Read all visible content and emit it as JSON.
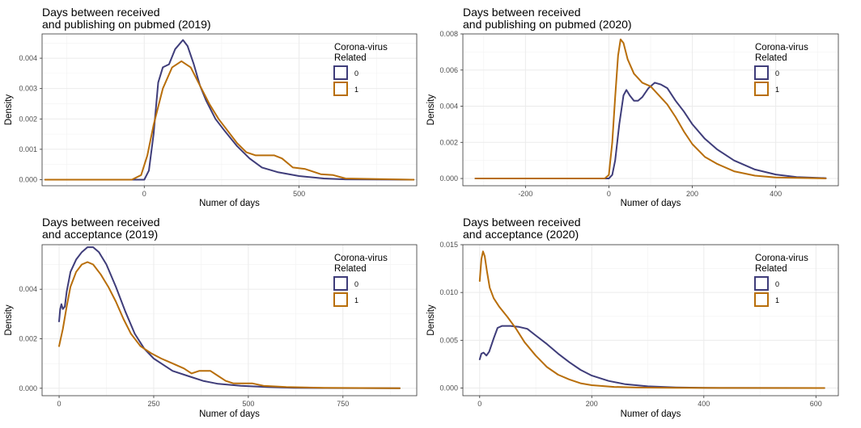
{
  "chart_data": [
    {
      "type": "line",
      "title": "Days between received\nand publishing on pubmed (2019)",
      "xlabel": "Numer of days",
      "ylabel": "Density",
      "xlim": [
        -330,
        880
      ],
      "ylim": [
        -0.0002,
        0.0048
      ],
      "xticks": [
        {
          "value": 0,
          "label": "0"
        },
        {
          "value": 500,
          "label": "500"
        }
      ],
      "yticks": [
        {
          "value": 0,
          "label": "0.000"
        },
        {
          "value": 0.001,
          "label": "0.001"
        },
        {
          "value": 0.002,
          "label": "0.002"
        },
        {
          "value": 0.003,
          "label": "0.003"
        },
        {
          "value": 0.004,
          "label": "0.004"
        }
      ],
      "grid": true,
      "legend": {
        "title": "Corona-virus\nRelated",
        "position": "top-right"
      },
      "series": [
        {
          "name": "0",
          "color": "#3f3d7a",
          "points": [
            [
              -320,
              0
            ],
            [
              0,
              0
            ],
            [
              15,
              0.0003
            ],
            [
              30,
              0.0015
            ],
            [
              45,
              0.0032
            ],
            [
              60,
              0.0037
            ],
            [
              80,
              0.0038
            ],
            [
              100,
              0.0043
            ],
            [
              125,
              0.0046
            ],
            [
              140,
              0.0044
            ],
            [
              160,
              0.0038
            ],
            [
              180,
              0.0031
            ],
            [
              200,
              0.0026
            ],
            [
              230,
              0.002
            ],
            [
              260,
              0.0016
            ],
            [
              300,
              0.0011
            ],
            [
              340,
              0.0007
            ],
            [
              380,
              0.0004
            ],
            [
              430,
              0.00025
            ],
            [
              500,
              0.00012
            ],
            [
              580,
              4e-05
            ],
            [
              650,
              1e-05
            ],
            [
              870,
              0
            ]
          ]
        },
        {
          "name": "1",
          "color": "#b86e0a",
          "points": [
            [
              -320,
              0
            ],
            [
              -40,
              0
            ],
            [
              -10,
              0.00015
            ],
            [
              10,
              0.0008
            ],
            [
              30,
              0.0018
            ],
            [
              60,
              0.003
            ],
            [
              90,
              0.0037
            ],
            [
              120,
              0.0039
            ],
            [
              150,
              0.0037
            ],
            [
              180,
              0.0031
            ],
            [
              210,
              0.0025
            ],
            [
              240,
              0.002
            ],
            [
              270,
              0.0016
            ],
            [
              300,
              0.0012
            ],
            [
              330,
              0.0009
            ],
            [
              360,
              0.0008
            ],
            [
              390,
              0.0008
            ],
            [
              420,
              0.0008
            ],
            [
              445,
              0.0007
            ],
            [
              480,
              0.0004
            ],
            [
              520,
              0.00035
            ],
            [
              570,
              0.00018
            ],
            [
              610,
              0.00015
            ],
            [
              650,
              4e-05
            ],
            [
              870,
              0
            ]
          ]
        }
      ]
    },
    {
      "type": "line",
      "title": "Days between received\nand publishing on pubmed (2020)",
      "xlabel": "Numer of days",
      "ylabel": "Density",
      "xlim": [
        -350,
        550
      ],
      "ylim": [
        -0.0004,
        0.008
      ],
      "xticks": [
        {
          "value": -200,
          "label": "-200"
        },
        {
          "value": 0,
          "label": "0"
        },
        {
          "value": 200,
          "label": "200"
        },
        {
          "value": 400,
          "label": "400"
        }
      ],
      "yticks": [
        {
          "value": 0,
          "label": "0.000"
        },
        {
          "value": 0.002,
          "label": "0.002"
        },
        {
          "value": 0.004,
          "label": "0.004"
        },
        {
          "value": 0.006,
          "label": "0.006"
        },
        {
          "value": 0.008,
          "label": "0.008"
        }
      ],
      "grid": true,
      "legend": {
        "title": "Corona-virus\nRelated",
        "position": "top-right"
      },
      "series": [
        {
          "name": "0",
          "color": "#3f3d7a",
          "points": [
            [
              -320,
              0
            ],
            [
              0,
              0
            ],
            [
              8,
              0.0002
            ],
            [
              15,
              0.001
            ],
            [
              25,
              0.003
            ],
            [
              35,
              0.0046
            ],
            [
              42,
              0.0049
            ],
            [
              50,
              0.0046
            ],
            [
              60,
              0.0043
            ],
            [
              70,
              0.0043
            ],
            [
              80,
              0.0045
            ],
            [
              95,
              0.005
            ],
            [
              110,
              0.0053
            ],
            [
              125,
              0.0052
            ],
            [
              140,
              0.005
            ],
            [
              160,
              0.0043
            ],
            [
              180,
              0.0037
            ],
            [
              200,
              0.003
            ],
            [
              230,
              0.0022
            ],
            [
              260,
              0.0016
            ],
            [
              300,
              0.001
            ],
            [
              350,
              0.0005
            ],
            [
              400,
              0.00022
            ],
            [
              450,
              8e-05
            ],
            [
              520,
              2e-05
            ]
          ]
        },
        {
          "name": "1",
          "color": "#b86e0a",
          "points": [
            [
              -320,
              0
            ],
            [
              -10,
              0
            ],
            [
              0,
              0.0002
            ],
            [
              8,
              0.002
            ],
            [
              15,
              0.0045
            ],
            [
              22,
              0.0068
            ],
            [
              28,
              0.0077
            ],
            [
              35,
              0.0075
            ],
            [
              45,
              0.0066
            ],
            [
              60,
              0.0058
            ],
            [
              80,
              0.0053
            ],
            [
              100,
              0.0051
            ],
            [
              120,
              0.0046
            ],
            [
              140,
              0.0041
            ],
            [
              160,
              0.0034
            ],
            [
              180,
              0.0026
            ],
            [
              200,
              0.0019
            ],
            [
              230,
              0.0012
            ],
            [
              260,
              0.0008
            ],
            [
              300,
              0.0004
            ],
            [
              350,
              0.00016
            ],
            [
              400,
              6e-05
            ],
            [
              520,
              0
            ]
          ]
        }
      ]
    },
    {
      "type": "line",
      "title": "Days between received\nand acceptance (2019)",
      "xlabel": "Numer of days",
      "ylabel": "Density",
      "xlim": [
        -45,
        945
      ],
      "ylim": [
        -0.0003,
        0.0058
      ],
      "xticks": [
        {
          "value": 0,
          "label": "0"
        },
        {
          "value": 250,
          "label": "250"
        },
        {
          "value": 500,
          "label": "500"
        },
        {
          "value": 750,
          "label": "750"
        }
      ],
      "yticks": [
        {
          "value": 0,
          "label": "0.000"
        },
        {
          "value": 0.002,
          "label": "0.002"
        },
        {
          "value": 0.004,
          "label": "0.004"
        }
      ],
      "grid": true,
      "legend": {
        "title": "Corona-virus\nRelated",
        "position": "top-right"
      },
      "series": [
        {
          "name": "0",
          "color": "#3f3d7a",
          "points": [
            [
              0,
              0.0027
            ],
            [
              3,
              0.0032
            ],
            [
              6,
              0.0034
            ],
            [
              10,
              0.0032
            ],
            [
              15,
              0.0033
            ],
            [
              20,
              0.0039
            ],
            [
              30,
              0.0047
            ],
            [
              45,
              0.0052
            ],
            [
              60,
              0.0055
            ],
            [
              75,
              0.0057
            ],
            [
              90,
              0.0057
            ],
            [
              105,
              0.0055
            ],
            [
              125,
              0.005
            ],
            [
              150,
              0.0041
            ],
            [
              175,
              0.0031
            ],
            [
              200,
              0.0022
            ],
            [
              225,
              0.0016
            ],
            [
              250,
              0.0012
            ],
            [
              280,
              0.0009
            ],
            [
              300,
              0.0007
            ],
            [
              340,
              0.0005
            ],
            [
              380,
              0.0003
            ],
            [
              420,
              0.00018
            ],
            [
              480,
              0.0001
            ],
            [
              550,
              5e-05
            ],
            [
              620,
              2e-05
            ],
            [
              700,
              1e-05
            ],
            [
              900,
              0
            ]
          ]
        },
        {
          "name": "1",
          "color": "#b86e0a",
          "points": [
            [
              0,
              0.0017
            ],
            [
              10,
              0.0024
            ],
            [
              20,
              0.0033
            ],
            [
              30,
              0.0041
            ],
            [
              45,
              0.0047
            ],
            [
              60,
              0.005
            ],
            [
              75,
              0.0051
            ],
            [
              90,
              0.005
            ],
            [
              110,
              0.0046
            ],
            [
              130,
              0.0041
            ],
            [
              150,
              0.0035
            ],
            [
              170,
              0.0028
            ],
            [
              190,
              0.0022
            ],
            [
              215,
              0.0017
            ],
            [
              245,
              0.0014
            ],
            [
              270,
              0.0012
            ],
            [
              300,
              0.001
            ],
            [
              330,
              0.0008
            ],
            [
              350,
              0.0006
            ],
            [
              370,
              0.0007
            ],
            [
              385,
              0.0007
            ],
            [
              400,
              0.0007
            ],
            [
              420,
              0.0005
            ],
            [
              440,
              0.0003
            ],
            [
              460,
              0.0002
            ],
            [
              490,
              0.0002
            ],
            [
              510,
              0.0002
            ],
            [
              540,
              0.0001
            ],
            [
              600,
              5e-05
            ],
            [
              700,
              2e-05
            ],
            [
              900,
              0
            ]
          ]
        }
      ]
    },
    {
      "type": "line",
      "title": "Days between received\nand acceptance (2020)",
      "xlabel": "Numer of days",
      "ylabel": "Density",
      "xlim": [
        -30,
        640
      ],
      "ylim": [
        -0.0008,
        0.015
      ],
      "xticks": [
        {
          "value": 0,
          "label": "0"
        },
        {
          "value": 200,
          "label": "200"
        },
        {
          "value": 400,
          "label": "400"
        },
        {
          "value": 600,
          "label": "600"
        }
      ],
      "yticks": [
        {
          "value": 0,
          "label": "0.000"
        },
        {
          "value": 0.005,
          "label": "0.005"
        },
        {
          "value": 0.01,
          "label": "0.010"
        },
        {
          "value": 0.015,
          "label": "0.015"
        }
      ],
      "grid": true,
      "legend": {
        "title": "Corona-virus\nRelated",
        "position": "top-right"
      },
      "series": [
        {
          "name": "0",
          "color": "#3f3d7a",
          "points": [
            [
              0,
              0.003
            ],
            [
              3,
              0.0036
            ],
            [
              7,
              0.0037
            ],
            [
              12,
              0.0034
            ],
            [
              17,
              0.0038
            ],
            [
              25,
              0.0052
            ],
            [
              32,
              0.0063
            ],
            [
              40,
              0.0065
            ],
            [
              55,
              0.0065
            ],
            [
              70,
              0.0064
            ],
            [
              85,
              0.0062
            ],
            [
              100,
              0.0055
            ],
            [
              120,
              0.0046
            ],
            [
              140,
              0.0036
            ],
            [
              160,
              0.0027
            ],
            [
              180,
              0.0019
            ],
            [
              200,
              0.0013
            ],
            [
              230,
              0.00075
            ],
            [
              260,
              0.0004
            ],
            [
              300,
              0.00018
            ],
            [
              350,
              7e-05
            ],
            [
              400,
              2e-05
            ],
            [
              450,
              1e-05
            ],
            [
              615,
              0
            ]
          ]
        },
        {
          "name": "1",
          "color": "#b86e0a",
          "points": [
            [
              0,
              0.0112
            ],
            [
              3,
              0.0135
            ],
            [
              6,
              0.0143
            ],
            [
              9,
              0.0138
            ],
            [
              13,
              0.0122
            ],
            [
              18,
              0.0105
            ],
            [
              25,
              0.0094
            ],
            [
              35,
              0.0085
            ],
            [
              50,
              0.0074
            ],
            [
              65,
              0.0062
            ],
            [
              80,
              0.0048
            ],
            [
              100,
              0.0034
            ],
            [
              120,
              0.0022
            ],
            [
              140,
              0.0014
            ],
            [
              160,
              0.0009
            ],
            [
              180,
              0.0005
            ],
            [
              200,
              0.0003
            ],
            [
              240,
              0.00012
            ],
            [
              280,
              5e-05
            ],
            [
              350,
              2e-05
            ],
            [
              615,
              0
            ]
          ]
        }
      ]
    }
  ]
}
